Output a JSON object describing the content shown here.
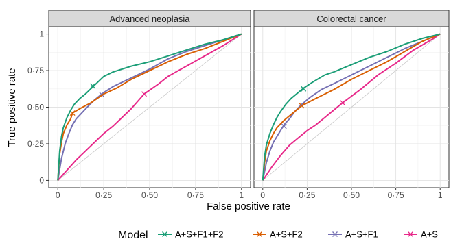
{
  "chart_data": {
    "type": "line",
    "xlabel": "False positive rate",
    "ylabel": "True positive rate",
    "xlim": [
      0,
      1
    ],
    "ylim": [
      0,
      1
    ],
    "x_ticks": [
      "0",
      "0·25",
      "0·50",
      "0·75",
      "1"
    ],
    "y_ticks": [
      "0",
      "0·25",
      "0·50",
      "0·75",
      "1"
    ],
    "grid": true,
    "reference_line": "diagonal",
    "legend": {
      "title": "Model",
      "position": "bottom"
    },
    "facets": [
      {
        "title": "Advanced neoplasia",
        "series": [
          {
            "name": "A+S+F1+F2",
            "color": "#1b9e77",
            "x": [
              0,
              0.01,
              0.02,
              0.03,
              0.05,
              0.07,
              0.09,
              0.12,
              0.15,
              0.2,
              0.25,
              0.3,
              0.4,
              0.5,
              0.6,
              0.7,
              0.8,
              0.9,
              1.0
            ],
            "y": [
              0,
              0.2,
              0.3,
              0.36,
              0.43,
              0.48,
              0.52,
              0.56,
              0.59,
              0.65,
              0.71,
              0.74,
              0.78,
              0.81,
              0.85,
              0.89,
              0.93,
              0.96,
              1.0
            ],
            "marker": [
              0.19,
              0.645
            ]
          },
          {
            "name": "A+S+F2",
            "color": "#d95f02",
            "x": [
              0,
              0.01,
              0.02,
              0.03,
              0.05,
              0.07,
              0.08,
              0.12,
              0.18,
              0.25,
              0.32,
              0.4,
              0.5,
              0.6,
              0.7,
              0.8,
              0.9,
              1.0
            ],
            "y": [
              0,
              0.18,
              0.26,
              0.32,
              0.38,
              0.42,
              0.46,
              0.49,
              0.53,
              0.59,
              0.63,
              0.69,
              0.75,
              0.81,
              0.86,
              0.9,
              0.95,
              1.0
            ],
            "marker": [
              0.08,
              0.46
            ]
          },
          {
            "name": "A+S+F1",
            "color": "#7570b3",
            "x": [
              0,
              0.02,
              0.04,
              0.06,
              0.08,
              0.1,
              0.13,
              0.16,
              0.2,
              0.25,
              0.3,
              0.4,
              0.5,
              0.6,
              0.7,
              0.8,
              0.9,
              1.0
            ],
            "y": [
              0,
              0.15,
              0.25,
              0.32,
              0.38,
              0.42,
              0.46,
              0.5,
              0.55,
              0.6,
              0.64,
              0.7,
              0.76,
              0.83,
              0.88,
              0.92,
              0.96,
              1.0
            ],
            "marker": [
              0.24,
              0.585
            ]
          },
          {
            "name": "A+S",
            "color": "#e7298a",
            "x": [
              0,
              0.05,
              0.1,
              0.15,
              0.2,
              0.25,
              0.3,
              0.35,
              0.4,
              0.47,
              0.55,
              0.6,
              0.7,
              0.8,
              0.9,
              1.0
            ],
            "y": [
              0,
              0.07,
              0.14,
              0.2,
              0.26,
              0.32,
              0.37,
              0.43,
              0.49,
              0.59,
              0.66,
              0.71,
              0.78,
              0.85,
              0.92,
              1.0
            ],
            "marker": [
              0.47,
              0.59
            ]
          }
        ]
      },
      {
        "title": "Colorectal cancer",
        "series": [
          {
            "name": "A+S+F1+F2",
            "color": "#1b9e77",
            "x": [
              0,
              0.01,
              0.02,
              0.04,
              0.06,
              0.08,
              0.1,
              0.13,
              0.16,
              0.2,
              0.23,
              0.28,
              0.35,
              0.4,
              0.5,
              0.6,
              0.7,
              0.8,
              0.9,
              1.0
            ],
            "y": [
              0,
              0.16,
              0.24,
              0.32,
              0.38,
              0.43,
              0.47,
              0.52,
              0.56,
              0.6,
              0.63,
              0.67,
              0.72,
              0.74,
              0.79,
              0.84,
              0.88,
              0.93,
              0.97,
              1.0
            ],
            "marker": [
              0.23,
              0.625
            ]
          },
          {
            "name": "A+S+F2",
            "color": "#d95f02",
            "x": [
              0,
              0.01,
              0.02,
              0.04,
              0.06,
              0.08,
              0.12,
              0.16,
              0.22,
              0.3,
              0.4,
              0.5,
              0.6,
              0.7,
              0.8,
              0.9,
              1.0
            ],
            "y": [
              0,
              0.12,
              0.2,
              0.27,
              0.32,
              0.36,
              0.41,
              0.45,
              0.51,
              0.56,
              0.62,
              0.69,
              0.75,
              0.81,
              0.88,
              0.95,
              1.0
            ],
            "marker": [
              0.22,
              0.51
            ]
          },
          {
            "name": "A+S+F1",
            "color": "#7570b3",
            "x": [
              0,
              0.02,
              0.04,
              0.06,
              0.08,
              0.1,
              0.12,
              0.15,
              0.18,
              0.22,
              0.27,
              0.33,
              0.4,
              0.5,
              0.6,
              0.7,
              0.8,
              0.9,
              1.0
            ],
            "y": [
              0,
              0.12,
              0.2,
              0.26,
              0.3,
              0.34,
              0.38,
              0.42,
              0.47,
              0.52,
              0.57,
              0.62,
              0.66,
              0.72,
              0.78,
              0.84,
              0.9,
              0.95,
              1.0
            ],
            "marker": [
              0.12,
              0.37
            ]
          },
          {
            "name": "A+S",
            "color": "#e7298a",
            "x": [
              0,
              0.05,
              0.1,
              0.15,
              0.2,
              0.25,
              0.3,
              0.35,
              0.45,
              0.55,
              0.65,
              0.75,
              0.85,
              0.95,
              1.0
            ],
            "y": [
              0,
              0.09,
              0.17,
              0.24,
              0.29,
              0.34,
              0.38,
              0.43,
              0.53,
              0.62,
              0.72,
              0.8,
              0.89,
              0.96,
              1.0
            ],
            "marker": [
              0.45,
              0.53
            ]
          }
        ]
      }
    ]
  }
}
